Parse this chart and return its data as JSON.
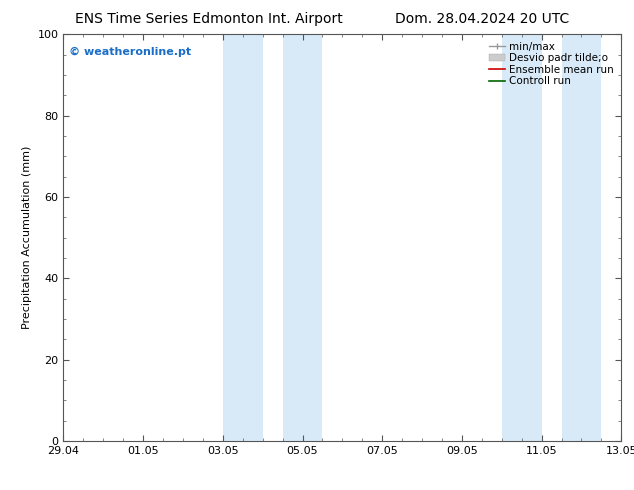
{
  "title_left": "ENS Time Series Edmonton Int. Airport",
  "title_right": "Dom. 28.04.2024 20 UTC",
  "ylabel": "Precipitation Accumulation (mm)",
  "xtick_labels": [
    "29.04",
    "01.05",
    "03.05",
    "05.05",
    "07.05",
    "09.05",
    "11.05",
    "13.05"
  ],
  "xtick_positions": [
    0,
    2,
    4,
    6,
    8,
    10,
    12,
    14
  ],
  "xlim": [
    0,
    14
  ],
  "ylim": [
    0,
    100
  ],
  "yticks": [
    0,
    20,
    40,
    60,
    80,
    100
  ],
  "shaded_regions": [
    {
      "x_start": 4.0,
      "x_end": 5.0
    },
    {
      "x_start": 5.5,
      "x_end": 6.5
    },
    {
      "x_start": 11.0,
      "x_end": 12.0
    },
    {
      "x_start": 12.5,
      "x_end": 13.5
    }
  ],
  "shaded_color": "#d8eaf8",
  "watermark_text": "© weatheronline.pt",
  "watermark_color": "#1a6ec7",
  "bg_color": "#ffffff",
  "axes_edge_color": "#555555",
  "title_fontsize": 10,
  "label_fontsize": 8,
  "tick_fontsize": 8,
  "legend_fontsize": 7.5,
  "legend_labels": [
    "min/max",
    "Desvio padr tilde;o",
    "Ensemble mean run",
    "Controll run"
  ],
  "legend_colors": [
    "#999999",
    "#cccccc",
    "#cc0000",
    "#006600"
  ]
}
